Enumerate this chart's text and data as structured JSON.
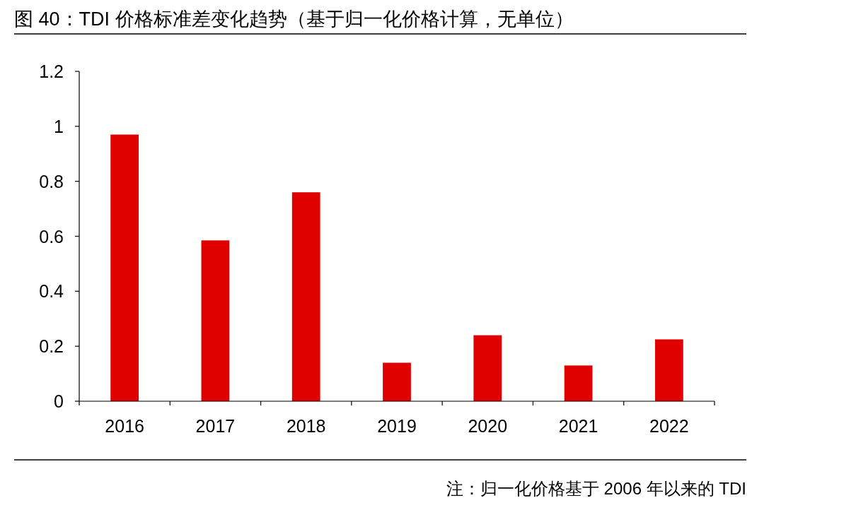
{
  "chart_data": {
    "type": "bar",
    "title": "图 40：TDI 价格标准差变化趋势（基于归一化价格计算，无单位）",
    "categories": [
      "2016",
      "2017",
      "2018",
      "2019",
      "2020",
      "2021",
      "2022"
    ],
    "values": [
      0.97,
      0.585,
      0.76,
      0.14,
      0.24,
      0.13,
      0.225
    ],
    "color": "#e00000",
    "ylim": [
      0,
      1.2
    ],
    "yticks": [
      0,
      0.2,
      0.4,
      0.6,
      0.8,
      1,
      1.2
    ],
    "annotations": [
      "注：归一化价格基于 2006 年以来的 TDI"
    ]
  }
}
